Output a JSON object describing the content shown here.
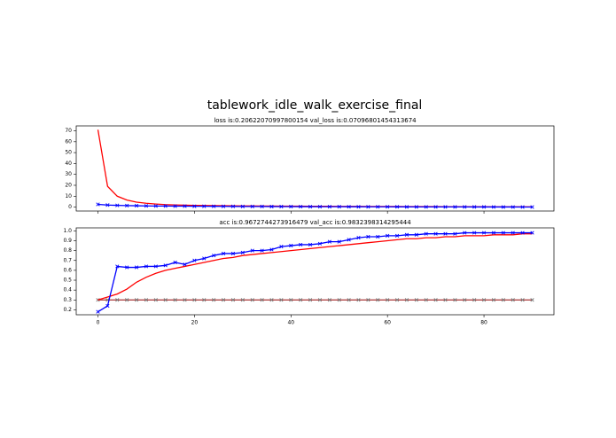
{
  "title": "tablework_idle_walk_exercise_final",
  "chart_data": [
    {
      "type": "line",
      "title": "loss is:0.20622070997800154 val_loss is:0.07096801454313674",
      "x": [
        0,
        2,
        4,
        6,
        8,
        10,
        12,
        14,
        16,
        18,
        20,
        22,
        24,
        26,
        28,
        30,
        32,
        34,
        36,
        38,
        40,
        42,
        44,
        46,
        48,
        50,
        52,
        54,
        56,
        58,
        60,
        62,
        64,
        66,
        68,
        70,
        72,
        74,
        76,
        78,
        80,
        82,
        84,
        86,
        88,
        90
      ],
      "series": [
        {
          "color": "red",
          "marker": "none",
          "values": [
            71,
            19,
            10,
            6.5,
            4.5,
            3.5,
            2.8,
            2.3,
            2.0,
            1.8,
            1.6,
            1.5,
            1.4,
            1.3,
            1.2,
            1.1,
            1.05,
            1.0,
            0.95,
            0.9,
            0.86,
            0.82,
            0.78,
            0.75,
            0.72,
            0.69,
            0.66,
            0.63,
            0.6,
            0.57,
            0.54,
            0.51,
            0.48,
            0.45,
            0.43,
            0.41,
            0.39,
            0.37,
            0.35,
            0.33,
            0.31,
            0.29,
            0.27,
            0.25,
            0.23,
            0.21
          ]
        },
        {
          "color": "blue",
          "marker": "x",
          "values": [
            2.5,
            1.9,
            1.6,
            1.4,
            1.25,
            1.1,
            1.0,
            0.95,
            0.9,
            0.85,
            0.8,
            0.76,
            0.72,
            0.68,
            0.64,
            0.6,
            0.57,
            0.54,
            0.51,
            0.48,
            0.45,
            0.42,
            0.4,
            0.38,
            0.36,
            0.34,
            0.32,
            0.3,
            0.28,
            0.26,
            0.24,
            0.22,
            0.2,
            0.19,
            0.18,
            0.17,
            0.16,
            0.15,
            0.14,
            0.13,
            0.12,
            0.11,
            0.1,
            0.09,
            0.08,
            0.07
          ]
        }
      ],
      "xlim": [
        -4.5,
        94.5
      ],
      "ylim": [
        -3.6,
        74.5
      ],
      "xticks": [
        0,
        20,
        40,
        60,
        80
      ],
      "show_xtick_labels": false,
      "yticks": [
        0,
        10,
        20,
        30,
        40,
        50,
        60,
        70
      ]
    },
    {
      "type": "line",
      "title": "acc is:0.9672744273916479 val_acc is:0.9832398314295444",
      "x": [
        0,
        2,
        4,
        6,
        8,
        10,
        12,
        14,
        16,
        18,
        20,
        22,
        24,
        26,
        28,
        30,
        32,
        34,
        36,
        38,
        40,
        42,
        44,
        46,
        48,
        50,
        52,
        54,
        56,
        58,
        60,
        62,
        64,
        66,
        68,
        70,
        72,
        74,
        76,
        78,
        80,
        82,
        84,
        86,
        88,
        90
      ],
      "series": [
        {
          "color": "#b04848",
          "marker": "x",
          "values": [
            0.3,
            0.3,
            0.3,
            0.3,
            0.3,
            0.3,
            0.3,
            0.3,
            0.3,
            0.3,
            0.3,
            0.3,
            0.3,
            0.3,
            0.3,
            0.3,
            0.3,
            0.3,
            0.3,
            0.3,
            0.3,
            0.3,
            0.3,
            0.3,
            0.3,
            0.3,
            0.3,
            0.3,
            0.3,
            0.3,
            0.3,
            0.3,
            0.3,
            0.3,
            0.3,
            0.3,
            0.3,
            0.3,
            0.3,
            0.3,
            0.3,
            0.3,
            0.3,
            0.3,
            0.3,
            0.3
          ]
        },
        {
          "color": "red",
          "marker": "none",
          "values": [
            0.3,
            0.33,
            0.36,
            0.41,
            0.48,
            0.53,
            0.57,
            0.6,
            0.62,
            0.64,
            0.66,
            0.68,
            0.7,
            0.72,
            0.73,
            0.75,
            0.76,
            0.77,
            0.78,
            0.79,
            0.8,
            0.81,
            0.82,
            0.83,
            0.84,
            0.85,
            0.86,
            0.87,
            0.88,
            0.89,
            0.9,
            0.91,
            0.92,
            0.92,
            0.93,
            0.93,
            0.94,
            0.94,
            0.95,
            0.95,
            0.95,
            0.96,
            0.96,
            0.96,
            0.97,
            0.97
          ]
        },
        {
          "color": "blue",
          "marker": "x",
          "values": [
            0.18,
            0.24,
            0.64,
            0.63,
            0.63,
            0.64,
            0.64,
            0.65,
            0.68,
            0.66,
            0.7,
            0.72,
            0.75,
            0.77,
            0.77,
            0.78,
            0.8,
            0.8,
            0.81,
            0.84,
            0.85,
            0.86,
            0.86,
            0.87,
            0.89,
            0.89,
            0.91,
            0.93,
            0.94,
            0.94,
            0.95,
            0.95,
            0.96,
            0.96,
            0.97,
            0.97,
            0.97,
            0.97,
            0.98,
            0.98,
            0.98,
            0.98,
            0.98,
            0.98,
            0.98,
            0.98
          ]
        }
      ],
      "xlim": [
        -4.5,
        94.5
      ],
      "ylim": [
        0.15,
        1.03
      ],
      "xticks": [
        0,
        20,
        40,
        60,
        80
      ],
      "show_xtick_labels": true,
      "yticks": [
        0.2,
        0.3,
        0.4,
        0.5,
        0.6,
        0.7,
        0.8,
        0.9,
        {
          "value": 1,
          "label": "1.0"
        }
      ]
    }
  ]
}
